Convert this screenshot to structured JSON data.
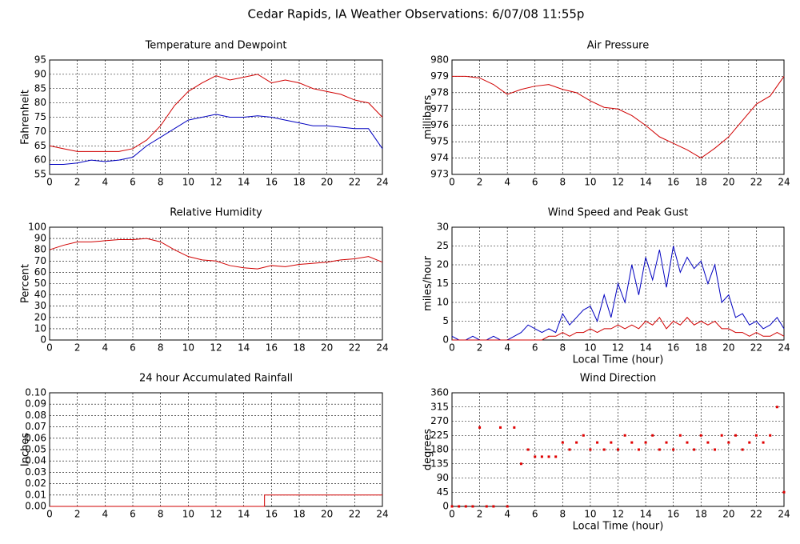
{
  "title": "Cedar Rapids, IA Weather Observations: 6/07/08 11:55p",
  "chart_data": [
    {
      "type": "line",
      "title": "Temperature and Dewpoint",
      "y_label": "Fahrenheit",
      "x": [
        0,
        1,
        2,
        3,
        4,
        5,
        6,
        7,
        8,
        9,
        10,
        11,
        12,
        13,
        14,
        15,
        16,
        17,
        18,
        19,
        20,
        21,
        22,
        23,
        24
      ],
      "series": [
        {
          "color": "#d00000",
          "values": [
            65,
            64,
            63,
            63,
            63,
            63,
            64,
            67,
            72,
            79,
            84,
            87,
            89.5,
            88,
            89,
            90,
            87,
            88,
            87,
            85,
            84,
            83,
            81,
            80,
            75
          ]
        },
        {
          "color": "#0000c0",
          "values": [
            58.5,
            58.5,
            59,
            60,
            59.5,
            60,
            61,
            65,
            68,
            71,
            74,
            75,
            76,
            75,
            75,
            75.5,
            75,
            74,
            73,
            72,
            72,
            71.5,
            71,
            71,
            64
          ]
        }
      ],
      "xlim": [
        0,
        24
      ],
      "xticks": [
        0,
        2,
        4,
        6,
        8,
        10,
        12,
        14,
        16,
        18,
        20,
        22,
        24
      ],
      "ylim": [
        55,
        95
      ],
      "yticks": [
        55,
        60,
        65,
        70,
        75,
        80,
        85,
        90,
        95
      ],
      "grid": true
    },
    {
      "type": "line",
      "title": "Air Pressure",
      "y_label": "millibars",
      "x": [
        0,
        1,
        2,
        3,
        4,
        5,
        6,
        7,
        8,
        9,
        10,
        11,
        12,
        13,
        14,
        15,
        16,
        17,
        18,
        19,
        20,
        21,
        22,
        23,
        24
      ],
      "series": [
        {
          "color": "#d00000",
          "values": [
            979,
            979,
            978.9,
            978.5,
            977.9,
            978.2,
            978.4,
            978.5,
            978.2,
            978,
            977.5,
            977.1,
            977,
            976.6,
            976,
            975.3,
            974.9,
            974.5,
            974,
            974.6,
            975.3,
            976.3,
            977.3,
            977.8,
            979
          ]
        }
      ],
      "xlim": [
        0,
        24
      ],
      "xticks": [
        0,
        2,
        4,
        6,
        8,
        10,
        12,
        14,
        16,
        18,
        20,
        22,
        24
      ],
      "ylim": [
        973,
        980
      ],
      "yticks": [
        973,
        974,
        975,
        976,
        977,
        978,
        979,
        980
      ],
      "grid": true
    },
    {
      "type": "line",
      "title": "Relative Humidity",
      "y_label": "Percent",
      "x": [
        0,
        1,
        2,
        3,
        4,
        5,
        6,
        7,
        8,
        9,
        10,
        11,
        12,
        13,
        14,
        15,
        16,
        17,
        18,
        19,
        20,
        21,
        22,
        23,
        24
      ],
      "series": [
        {
          "color": "#d00000",
          "values": [
            80,
            84,
            87,
            87,
            88,
            89,
            89,
            90,
            87,
            80,
            74,
            71,
            70,
            66,
            64,
            63,
            66,
            65,
            67,
            68,
            69,
            71,
            72,
            74,
            69
          ]
        }
      ],
      "xlim": [
        0,
        24
      ],
      "xticks": [
        0,
        2,
        4,
        6,
        8,
        10,
        12,
        14,
        16,
        18,
        20,
        22,
        24
      ],
      "ylim": [
        0,
        100
      ],
      "yticks": [
        0,
        10,
        20,
        30,
        40,
        50,
        60,
        70,
        80,
        90,
        100
      ],
      "grid": true
    },
    {
      "type": "line",
      "title": "Wind Speed and Peak Gust",
      "y_label": "miles/hour",
      "x_label": "Local Time (hour)",
      "x": [
        0,
        0.5,
        1,
        1.5,
        2,
        2.5,
        3,
        3.5,
        4,
        4.5,
        5,
        5.5,
        6,
        6.5,
        7,
        7.5,
        8,
        8.5,
        9,
        9.5,
        10,
        10.5,
        11,
        11.5,
        12,
        12.5,
        13,
        13.5,
        14,
        14.5,
        15,
        15.5,
        16,
        16.5,
        17,
        17.5,
        18,
        18.5,
        19,
        19.5,
        20,
        20.5,
        21,
        21.5,
        22,
        22.5,
        23,
        23.5,
        24
      ],
      "series": [
        {
          "color": "#0000c0",
          "values": [
            1,
            0,
            0,
            1,
            0,
            0,
            1,
            0,
            0,
            1,
            2,
            4,
            3,
            2,
            3,
            2,
            7,
            4,
            6,
            8,
            9,
            5,
            12,
            6,
            15,
            10,
            20,
            12,
            22,
            16,
            24,
            14,
            25,
            18,
            22,
            19,
            21,
            15,
            20,
            10,
            12,
            6,
            7,
            4,
            5,
            3,
            4,
            6,
            3
          ]
        },
        {
          "color": "#d00000",
          "values": [
            0,
            0,
            0,
            0,
            0,
            0,
            0,
            0,
            0,
            0,
            0,
            0,
            0,
            0,
            1,
            1,
            2,
            1,
            2,
            2,
            3,
            2,
            3,
            3,
            4,
            3,
            4,
            3,
            5,
            4,
            6,
            3,
            5,
            4,
            6,
            4,
            5,
            4,
            5,
            3,
            3,
            2,
            2,
            1,
            2,
            1,
            1,
            2,
            1
          ]
        }
      ],
      "xlim": [
        0,
        24
      ],
      "xticks": [
        0,
        2,
        4,
        6,
        8,
        10,
        12,
        14,
        16,
        18,
        20,
        22,
        24
      ],
      "ylim": [
        0,
        30
      ],
      "yticks": [
        0,
        5,
        10,
        15,
        20,
        25,
        30
      ],
      "grid": true
    },
    {
      "type": "line",
      "title": "24 hour Accumulated Rainfall",
      "y_label": "Inches",
      "x": [
        0,
        15.5,
        15.5,
        24
      ],
      "series": [
        {
          "color": "#d00000",
          "values": [
            0,
            0,
            0.01,
            0.01
          ]
        }
      ],
      "xlim": [
        0,
        24
      ],
      "xticks": [
        0,
        2,
        4,
        6,
        8,
        10,
        12,
        14,
        16,
        18,
        20,
        22,
        24
      ],
      "ylim": [
        0,
        0.1
      ],
      "yticks": [
        {
          "value": 0,
          "label": "0.00"
        },
        {
          "value": 0.01,
          "label": "0.01"
        },
        {
          "value": 0.02,
          "label": "0.02"
        },
        {
          "value": 0.03,
          "label": "0.03"
        },
        {
          "value": 0.04,
          "label": "0.04"
        },
        {
          "value": 0.05,
          "label": "0.05"
        },
        {
          "value": 0.06,
          "label": "0.06"
        },
        {
          "value": 0.07,
          "label": "0.07"
        },
        {
          "value": 0.08,
          "label": "0.08"
        },
        {
          "value": 0.09,
          "label": "0.09"
        },
        {
          "value": 0.1,
          "label": "0.10"
        }
      ],
      "grid": true
    },
    {
      "type": "scatter",
      "title": "Wind Direction",
      "y_label": "degrees",
      "x_label": "Local Time (hour)",
      "x": [
        0,
        0.5,
        1,
        1.5,
        2,
        2.5,
        3,
        3.5,
        4,
        4.5,
        5,
        5.5,
        6,
        6.5,
        7,
        7.5,
        8,
        8.5,
        9,
        9.5,
        10,
        10.5,
        11,
        11.5,
        12,
        12.5,
        13,
        13.5,
        14,
        14.5,
        15,
        15.5,
        16,
        16.5,
        17,
        17.5,
        18,
        18.5,
        19,
        19.5,
        20,
        20.5,
        21,
        21.5,
        22,
        22.5,
        23,
        23.5,
        24
      ],
      "series": [
        {
          "color": "#e00000",
          "values": [
            0,
            0,
            0,
            0,
            250,
            0,
            0,
            250,
            0,
            250,
            135,
            180,
            157.5,
            157.5,
            157.5,
            157.5,
            202.5,
            180,
            202.5,
            225,
            180,
            202.5,
            180,
            202.5,
            180,
            225,
            202.5,
            180,
            202.5,
            225,
            180,
            202.5,
            180,
            225,
            202.5,
            180,
            225,
            202.5,
            180,
            225,
            202.5,
            225,
            180,
            202.5,
            225,
            202.5,
            225,
            315,
            45
          ]
        }
      ],
      "xlim": [
        0,
        24
      ],
      "xticks": [
        0,
        2,
        4,
        6,
        8,
        10,
        12,
        14,
        16,
        18,
        20,
        22,
        24
      ],
      "ylim": [
        0,
        360
      ],
      "yticks": [
        0,
        45,
        90,
        135,
        180,
        225,
        270,
        315,
        360
      ],
      "grid": true
    }
  ]
}
